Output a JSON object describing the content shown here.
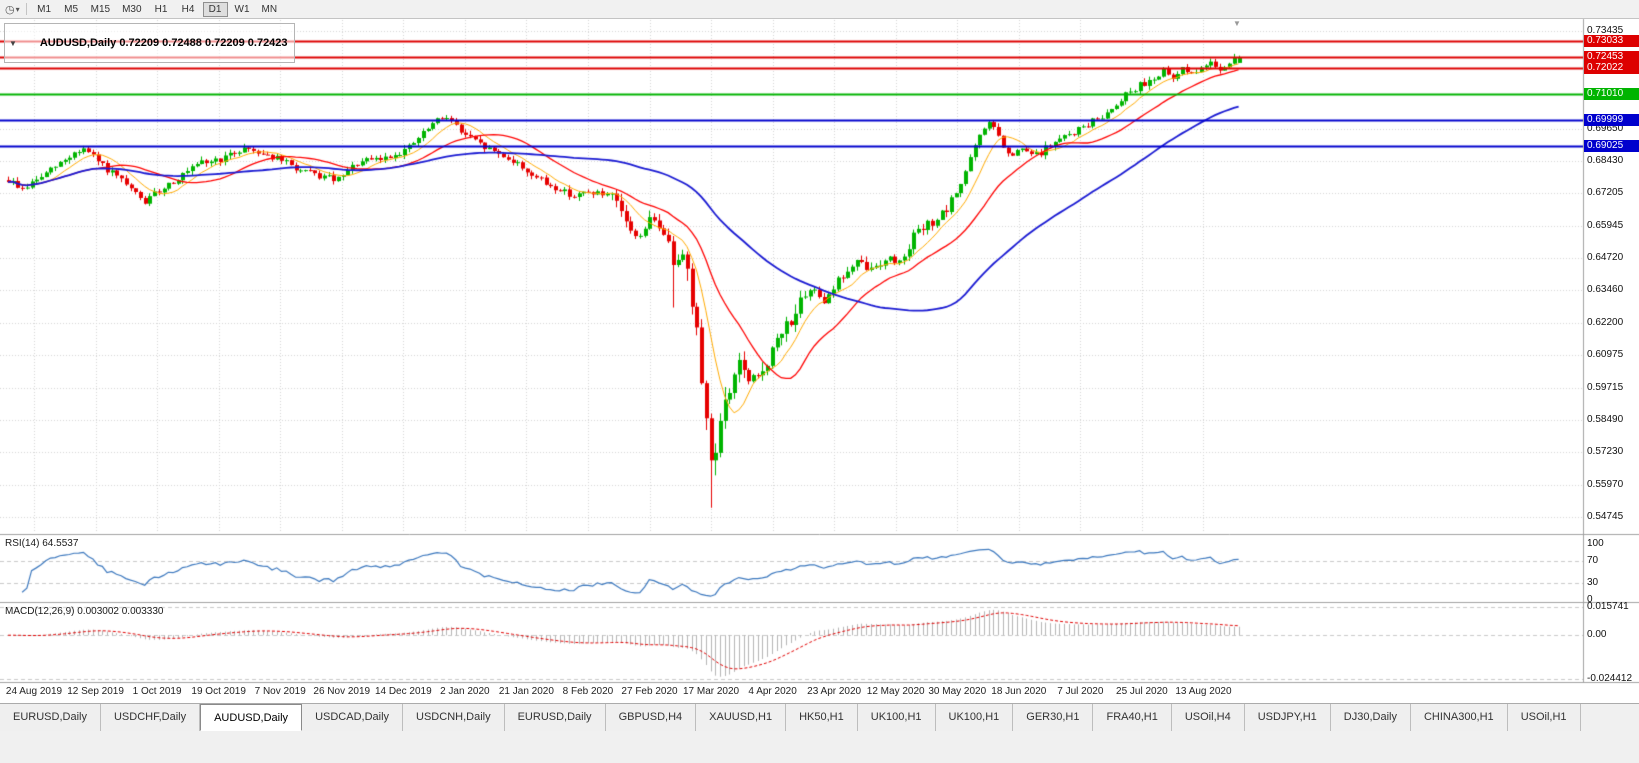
{
  "toolbar": {
    "timeframes": [
      "M1",
      "M5",
      "M15",
      "M30",
      "H1",
      "H4",
      "D1",
      "W1",
      "MN"
    ],
    "active": "D1"
  },
  "main_chart": {
    "title": "AUDUSD,Daily",
    "ohlc_text": " 0.72209 0.72488 0.72209 0.72423",
    "price_axis_labels": [
      "0.73435",
      "0.69650",
      "0.68430",
      "0.67205",
      "0.65945",
      "0.64720",
      "0.63460",
      "0.62200",
      "0.60975",
      "0.59715",
      "0.58490",
      "0.57230",
      "0.55970",
      "0.54745"
    ],
    "hlines": [
      {
        "price": "0.73033",
        "color": "#dd0000"
      },
      {
        "price": "0.72453",
        "color": "#dd0000"
      },
      {
        "price": "0.72022",
        "color": "#dd0000"
      },
      {
        "price": "0.71010",
        "color": "#00b400"
      },
      {
        "price": "0.69999",
        "color": "#0000cd"
      },
      {
        "price": "0.69025",
        "color": "#0000cd"
      }
    ]
  },
  "rsi_panel": {
    "label": "RSI(14) 64.5537",
    "value": "64.5537",
    "levels": [
      "100",
      "70",
      "30",
      "0"
    ]
  },
  "macd_panel": {
    "label": "MACD(12,26,9) 0.003002 0.003330",
    "values": [
      "0.003002",
      "0.003330"
    ],
    "levels": [
      "0.015741",
      "0.00",
      "-0.024412"
    ],
    "scale_max": 0.015741,
    "scale_min": -0.024412
  },
  "date_axis": [
    "24 Aug 2019",
    "12 Sep 2019",
    "1 Oct 2019",
    "19 Oct 2019",
    "7 Nov 2019",
    "26 Nov 2019",
    "14 Dec 2019",
    "2 Jan 2020",
    "21 Jan 2020",
    "8 Feb 2020",
    "27 Feb 2020",
    "17 Mar 2020",
    "4 Apr 2020",
    "23 Apr 2020",
    "12 May 2020",
    "30 May 2020",
    "18 Jun 2020",
    "7 Jul 2020",
    "25 Jul 2020",
    "13 Aug 2020"
  ],
  "tabs": {
    "active_index": 2,
    "items": [
      {
        "label": "EURUSD,Daily"
      },
      {
        "label": "USDCHF,Daily"
      },
      {
        "label": "AUDUSD,Daily"
      },
      {
        "label": "USDCAD,Daily"
      },
      {
        "label": "USDCNH,Daily"
      },
      {
        "label": "EURUSD,Daily"
      },
      {
        "label": "GBPUSD,H4"
      },
      {
        "label": "XAUUSD,H1"
      },
      {
        "label": "HK50,H1"
      },
      {
        "label": "UK100,H1"
      },
      {
        "label": "UK100,H1"
      },
      {
        "label": "GER30,H1"
      },
      {
        "label": "FRA40,H1"
      },
      {
        "label": "USOil,H4"
      },
      {
        "label": "USDJPY,H1"
      },
      {
        "label": "DJ30,Daily"
      },
      {
        "label": "CHINA300,H1"
      },
      {
        "label": "USOil,H1"
      }
    ]
  },
  "chart_data": {
    "type": "candlestick",
    "symbol": "AUDUSD",
    "timeframe": "Daily",
    "visible_range": {
      "price_min": 0.54745,
      "price_max": 0.73435
    },
    "last_bar": {
      "open": 0.72209,
      "high": 0.72488,
      "low": 0.72209,
      "close": 0.72423
    },
    "bars": 262,
    "price_path": [
      [
        0,
        0.677
      ],
      [
        3,
        0.6735
      ],
      [
        8,
        0.6795
      ],
      [
        14,
        0.6875
      ],
      [
        16,
        0.689
      ],
      [
        20,
        0.6825
      ],
      [
        24,
        0.6765
      ],
      [
        27,
        0.6715
      ],
      [
        29,
        0.6685
      ],
      [
        33,
        0.6745
      ],
      [
        38,
        0.68
      ],
      [
        41,
        0.6835
      ],
      [
        46,
        0.6855
      ],
      [
        50,
        0.6895
      ],
      [
        53,
        0.688
      ],
      [
        58,
        0.6845
      ],
      [
        62,
        0.6805
      ],
      [
        66,
        0.6785
      ],
      [
        70,
        0.677
      ],
      [
        74,
        0.6835
      ],
      [
        80,
        0.6855
      ],
      [
        85,
        0.6895
      ],
      [
        90,
        0.6985
      ],
      [
        93,
        0.702
      ],
      [
        96,
        0.6955
      ],
      [
        100,
        0.6905
      ],
      [
        106,
        0.6855
      ],
      [
        110,
        0.6805
      ],
      [
        114,
        0.6755
      ],
      [
        120,
        0.671
      ],
      [
        124,
        0.6725
      ],
      [
        128,
        0.67
      ],
      [
        131,
        0.6615
      ],
      [
        133,
        0.6545
      ],
      [
        136,
        0.6615
      ],
      [
        139,
        0.6575
      ],
      [
        141,
        0.646
      ],
      [
        143,
        0.6505
      ],
      [
        145,
        0.63
      ],
      [
        147,
        0.603
      ],
      [
        149,
        0.568
      ],
      [
        151,
        0.583
      ],
      [
        153,
        0.596
      ],
      [
        155,
        0.608
      ],
      [
        157,
        0.598
      ],
      [
        159,
        0.601
      ],
      [
        162,
        0.611
      ],
      [
        165,
        0.6215
      ],
      [
        168,
        0.629
      ],
      [
        171,
        0.6355
      ],
      [
        173,
        0.631
      ],
      [
        176,
        0.6385
      ],
      [
        180,
        0.645
      ],
      [
        183,
        0.6425
      ],
      [
        186,
        0.647
      ],
      [
        189,
        0.6455
      ],
      [
        192,
        0.6555
      ],
      [
        196,
        0.661
      ],
      [
        199,
        0.665
      ],
      [
        202,
        0.676
      ],
      [
        205,
        0.69
      ],
      [
        208,
        0.7
      ],
      [
        210,
        0.6935
      ],
      [
        212,
        0.686
      ],
      [
        215,
        0.6885
      ],
      [
        218,
        0.6865
      ],
      [
        221,
        0.6905
      ],
      [
        225,
        0.6945
      ],
      [
        228,
        0.6975
      ],
      [
        231,
        0.7005
      ],
      [
        234,
        0.7045
      ],
      [
        237,
        0.7105
      ],
      [
        239,
        0.7125
      ],
      [
        242,
        0.7155
      ],
      [
        245,
        0.7185
      ],
      [
        247,
        0.7155
      ],
      [
        249,
        0.7205
      ],
      [
        252,
        0.7175
      ],
      [
        255,
        0.7235
      ],
      [
        257,
        0.7195
      ],
      [
        259,
        0.7225
      ],
      [
        261,
        0.72423
      ]
    ],
    "forced_lows": [
      {
        "index": 141,
        "low": 0.628
      },
      {
        "index": 149,
        "low": 0.551
      }
    ],
    "overlays": [
      {
        "name": "sma-fast",
        "period": 8,
        "color": "#ffaa00"
      },
      {
        "name": "sma-mid",
        "period": 20,
        "color": "#ff0000"
      },
      {
        "name": "sma-slow",
        "period": 55,
        "color": "#1a1ad2"
      }
    ],
    "indicators": [
      {
        "name": "RSI",
        "period": 14,
        "value": 64.5537
      },
      {
        "name": "MACD",
        "params": [
          12,
          26,
          9
        ],
        "macd": 0.003002,
        "signal": 0.00333
      }
    ]
  },
  "colors": {
    "grid": "#d4d4d4",
    "candle_up": "#00b400",
    "candle_down": "#e60000",
    "rsi_line": "#3c78be",
    "macd_hist": "#b4b4b4",
    "macd_signal": "#e00000"
  }
}
